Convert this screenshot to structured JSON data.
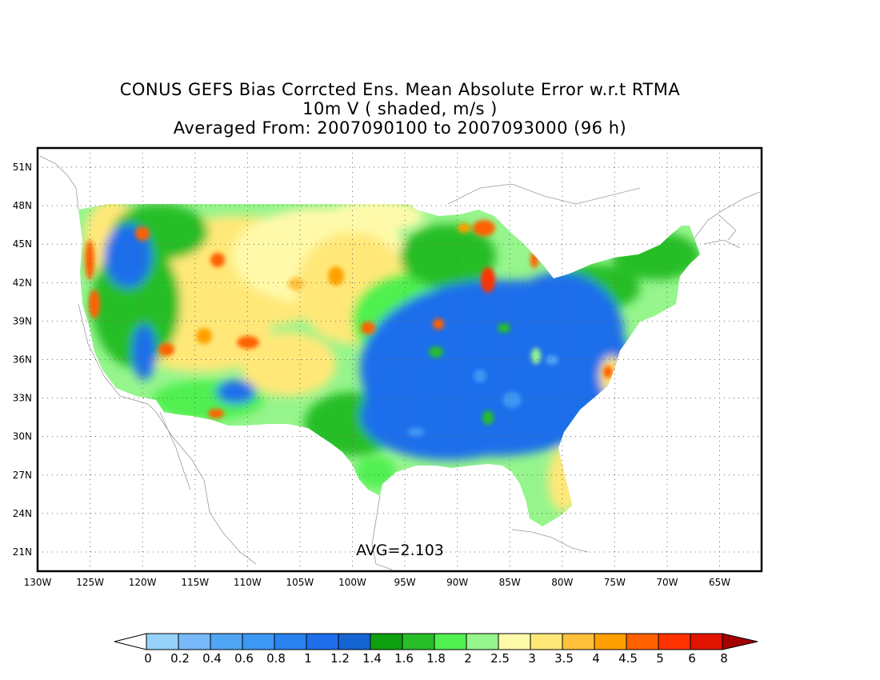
{
  "title": {
    "line1": "CONUS GEFS Bias Corrcted Ens. Mean Absolute Error w.r.t RTMA",
    "line2": "10m V ( shaded, m/s )",
    "line3": "Averaged From: 2007090100 to 2007093000 (96 h)"
  },
  "annotation": {
    "avg": "AVG=2.103"
  },
  "axes": {
    "lat_labels": [
      "51N",
      "48N",
      "45N",
      "42N",
      "39N",
      "36N",
      "33N",
      "30N",
      "27N",
      "24N",
      "21N"
    ],
    "lat_values": [
      51,
      48,
      45,
      42,
      39,
      36,
      33,
      30,
      27,
      24,
      21
    ],
    "lon_labels": [
      "130W",
      "125W",
      "120W",
      "115W",
      "110W",
      "105W",
      "100W",
      "95W",
      "90W",
      "85W",
      "80W",
      "75W",
      "70W",
      "65W"
    ],
    "lon_values": [
      -130,
      -125,
      -120,
      -115,
      -110,
      -105,
      -100,
      -95,
      -90,
      -85,
      -80,
      -75,
      -70,
      -65
    ],
    "lon_range": [
      -130,
      -61
    ],
    "lat_range": [
      19.5,
      52.5
    ],
    "grid": "dotted"
  },
  "colorbar": {
    "labels": [
      "0",
      "0.2",
      "0.4",
      "0.6",
      "0.8",
      "1",
      "1.2",
      "1.4",
      "1.6",
      "1.8",
      "2",
      "2.5",
      "3",
      "3.5",
      "4",
      "4.5",
      "5",
      "6",
      "8"
    ],
    "colors": [
      "#96d2fa",
      "#78b9fa",
      "#50a5f5",
      "#3c97f5",
      "#2882f0",
      "#1e6eeb",
      "#1464d2",
      "#0fa00f",
      "#28be28",
      "#50f050",
      "#96f58c",
      "#fffaaa",
      "#ffe878",
      "#ffc03c",
      "#ffa000",
      "#ff6000",
      "#ff3200",
      "#e11400",
      "#a50000"
    ],
    "under_color": "#ffffff",
    "over_color": "#a50000"
  },
  "colors": {
    "background": "#ffffff",
    "low": "#1e6eeb",
    "mid": "#28be28",
    "light": "#96f58c",
    "high": "#ffe878",
    "peak": "#ff6000"
  }
}
